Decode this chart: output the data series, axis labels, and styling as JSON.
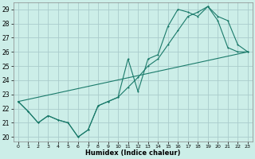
{
  "xlabel": "Humidex (Indice chaleur)",
  "bg_color": "#cceee8",
  "grid_color": "#aacccc",
  "line_color": "#1a7a6a",
  "xlim": [
    -0.5,
    23.5
  ],
  "ylim": [
    19.7,
    29.5
  ],
  "xticks": [
    0,
    1,
    2,
    3,
    4,
    5,
    6,
    7,
    8,
    9,
    10,
    11,
    12,
    13,
    14,
    15,
    16,
    17,
    18,
    19,
    20,
    21,
    22,
    23
  ],
  "yticks": [
    20,
    21,
    22,
    23,
    24,
    25,
    26,
    27,
    28,
    29
  ],
  "line1_x": [
    0,
    1,
    2,
    3,
    4,
    5,
    6,
    7,
    8,
    9,
    10,
    11,
    12,
    13,
    14,
    15,
    16,
    17,
    18,
    19,
    20,
    21,
    22,
    23
  ],
  "line1_y": [
    22.5,
    21.8,
    21.0,
    21.5,
    21.2,
    21.0,
    20.0,
    20.5,
    22.2,
    22.5,
    22.8,
    25.5,
    23.2,
    25.5,
    25.8,
    27.8,
    29.0,
    28.8,
    28.5,
    29.2,
    28.5,
    28.2,
    26.5,
    26.0
  ],
  "line2_x": [
    0,
    1,
    2,
    3,
    4,
    5,
    6,
    7,
    8,
    9,
    10,
    11,
    12,
    13,
    14,
    15,
    16,
    17,
    18,
    19,
    20,
    21,
    22,
    23
  ],
  "line2_y": [
    22.5,
    21.8,
    21.0,
    21.5,
    21.2,
    21.0,
    20.0,
    20.5,
    22.2,
    22.5,
    22.8,
    23.5,
    24.2,
    25.0,
    25.5,
    26.5,
    27.5,
    28.5,
    28.8,
    29.2,
    28.2,
    26.3,
    26.0,
    26.0
  ],
  "line3_x": [
    0,
    23
  ],
  "line3_y": [
    22.5,
    26.0
  ]
}
